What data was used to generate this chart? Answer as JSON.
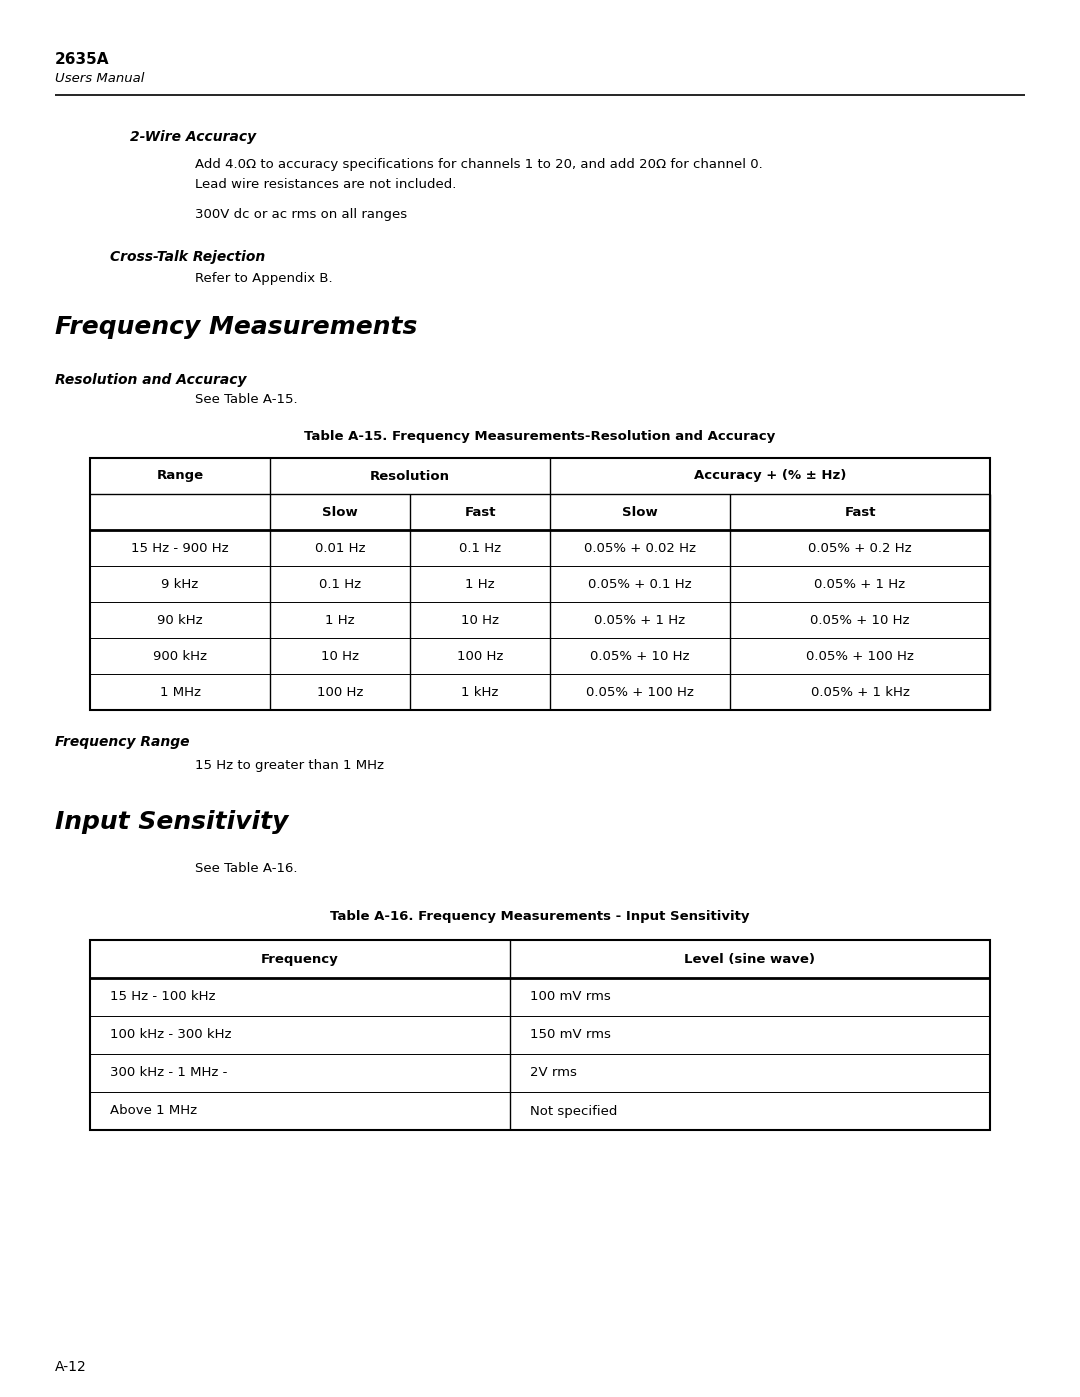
{
  "page_title": "2635A",
  "page_subtitle": "Users Manual",
  "page_number": "A-12",
  "section1_title": "2-Wire Accuracy",
  "section1_text1": "Add 4.0Ω to accuracy specifications for channels 1 to 20, and add 20Ω for channel 0.",
  "section1_text2": "Lead wire resistances are not included.",
  "section1_text3": "300V dc or ac rms on all ranges",
  "section2_title": "Cross-Talk Rejection",
  "section2_text": "Refer to Appendix B.",
  "section3_title": "Frequency Measurements",
  "section3_sub": "Resolution and Accuracy",
  "section3_text": "See Table A-15.",
  "table1_caption": "Table A-15. Frequency Measurements-Resolution and Accuracy",
  "table1_col_headers": [
    "Range",
    "Resolution",
    "Accuracy + (% ± Hz)"
  ],
  "table1_sub_headers": [
    "Slow",
    "Fast",
    "Slow",
    "Fast"
  ],
  "table1_rows": [
    [
      "15 Hz - 900 Hz",
      "0.01 Hz",
      "0.1 Hz",
      "0.05% + 0.02 Hz",
      "0.05% + 0.2 Hz"
    ],
    [
      "9 kHz",
      "0.1 Hz",
      "1 Hz",
      "0.05% + 0.1 Hz",
      "0.05% + 1 Hz"
    ],
    [
      "90 kHz",
      "1 Hz",
      "10 Hz",
      "0.05% + 1 Hz",
      "0.05% + 10 Hz"
    ],
    [
      "900 kHz",
      "10 Hz",
      "100 Hz",
      "0.05% + 10 Hz",
      "0.05% + 100 Hz"
    ],
    [
      "1 MHz",
      "100 Hz",
      "1 kHz",
      "0.05% + 100 Hz",
      "0.05% + 1 kHz"
    ]
  ],
  "section4_sub": "Frequency Range",
  "section4_text": "15 Hz to greater than 1 MHz",
  "section5_title": "Input Sensitivity",
  "section5_text": "See Table A-16.",
  "table2_caption": "Table A-16. Frequency Measurements - Input Sensitivity",
  "table2_col_headers": [
    "Frequency",
    "Level (sine wave)"
  ],
  "table2_rows": [
    [
      "15 Hz - 100 kHz",
      "100 mV rms"
    ],
    [
      "100 kHz - 300 kHz",
      "150 mV rms"
    ],
    [
      "300 kHz - 1 MHz -",
      "2V rms"
    ],
    [
      "Above 1 MHz",
      "Not specified"
    ]
  ],
  "bg_color": "#ffffff"
}
